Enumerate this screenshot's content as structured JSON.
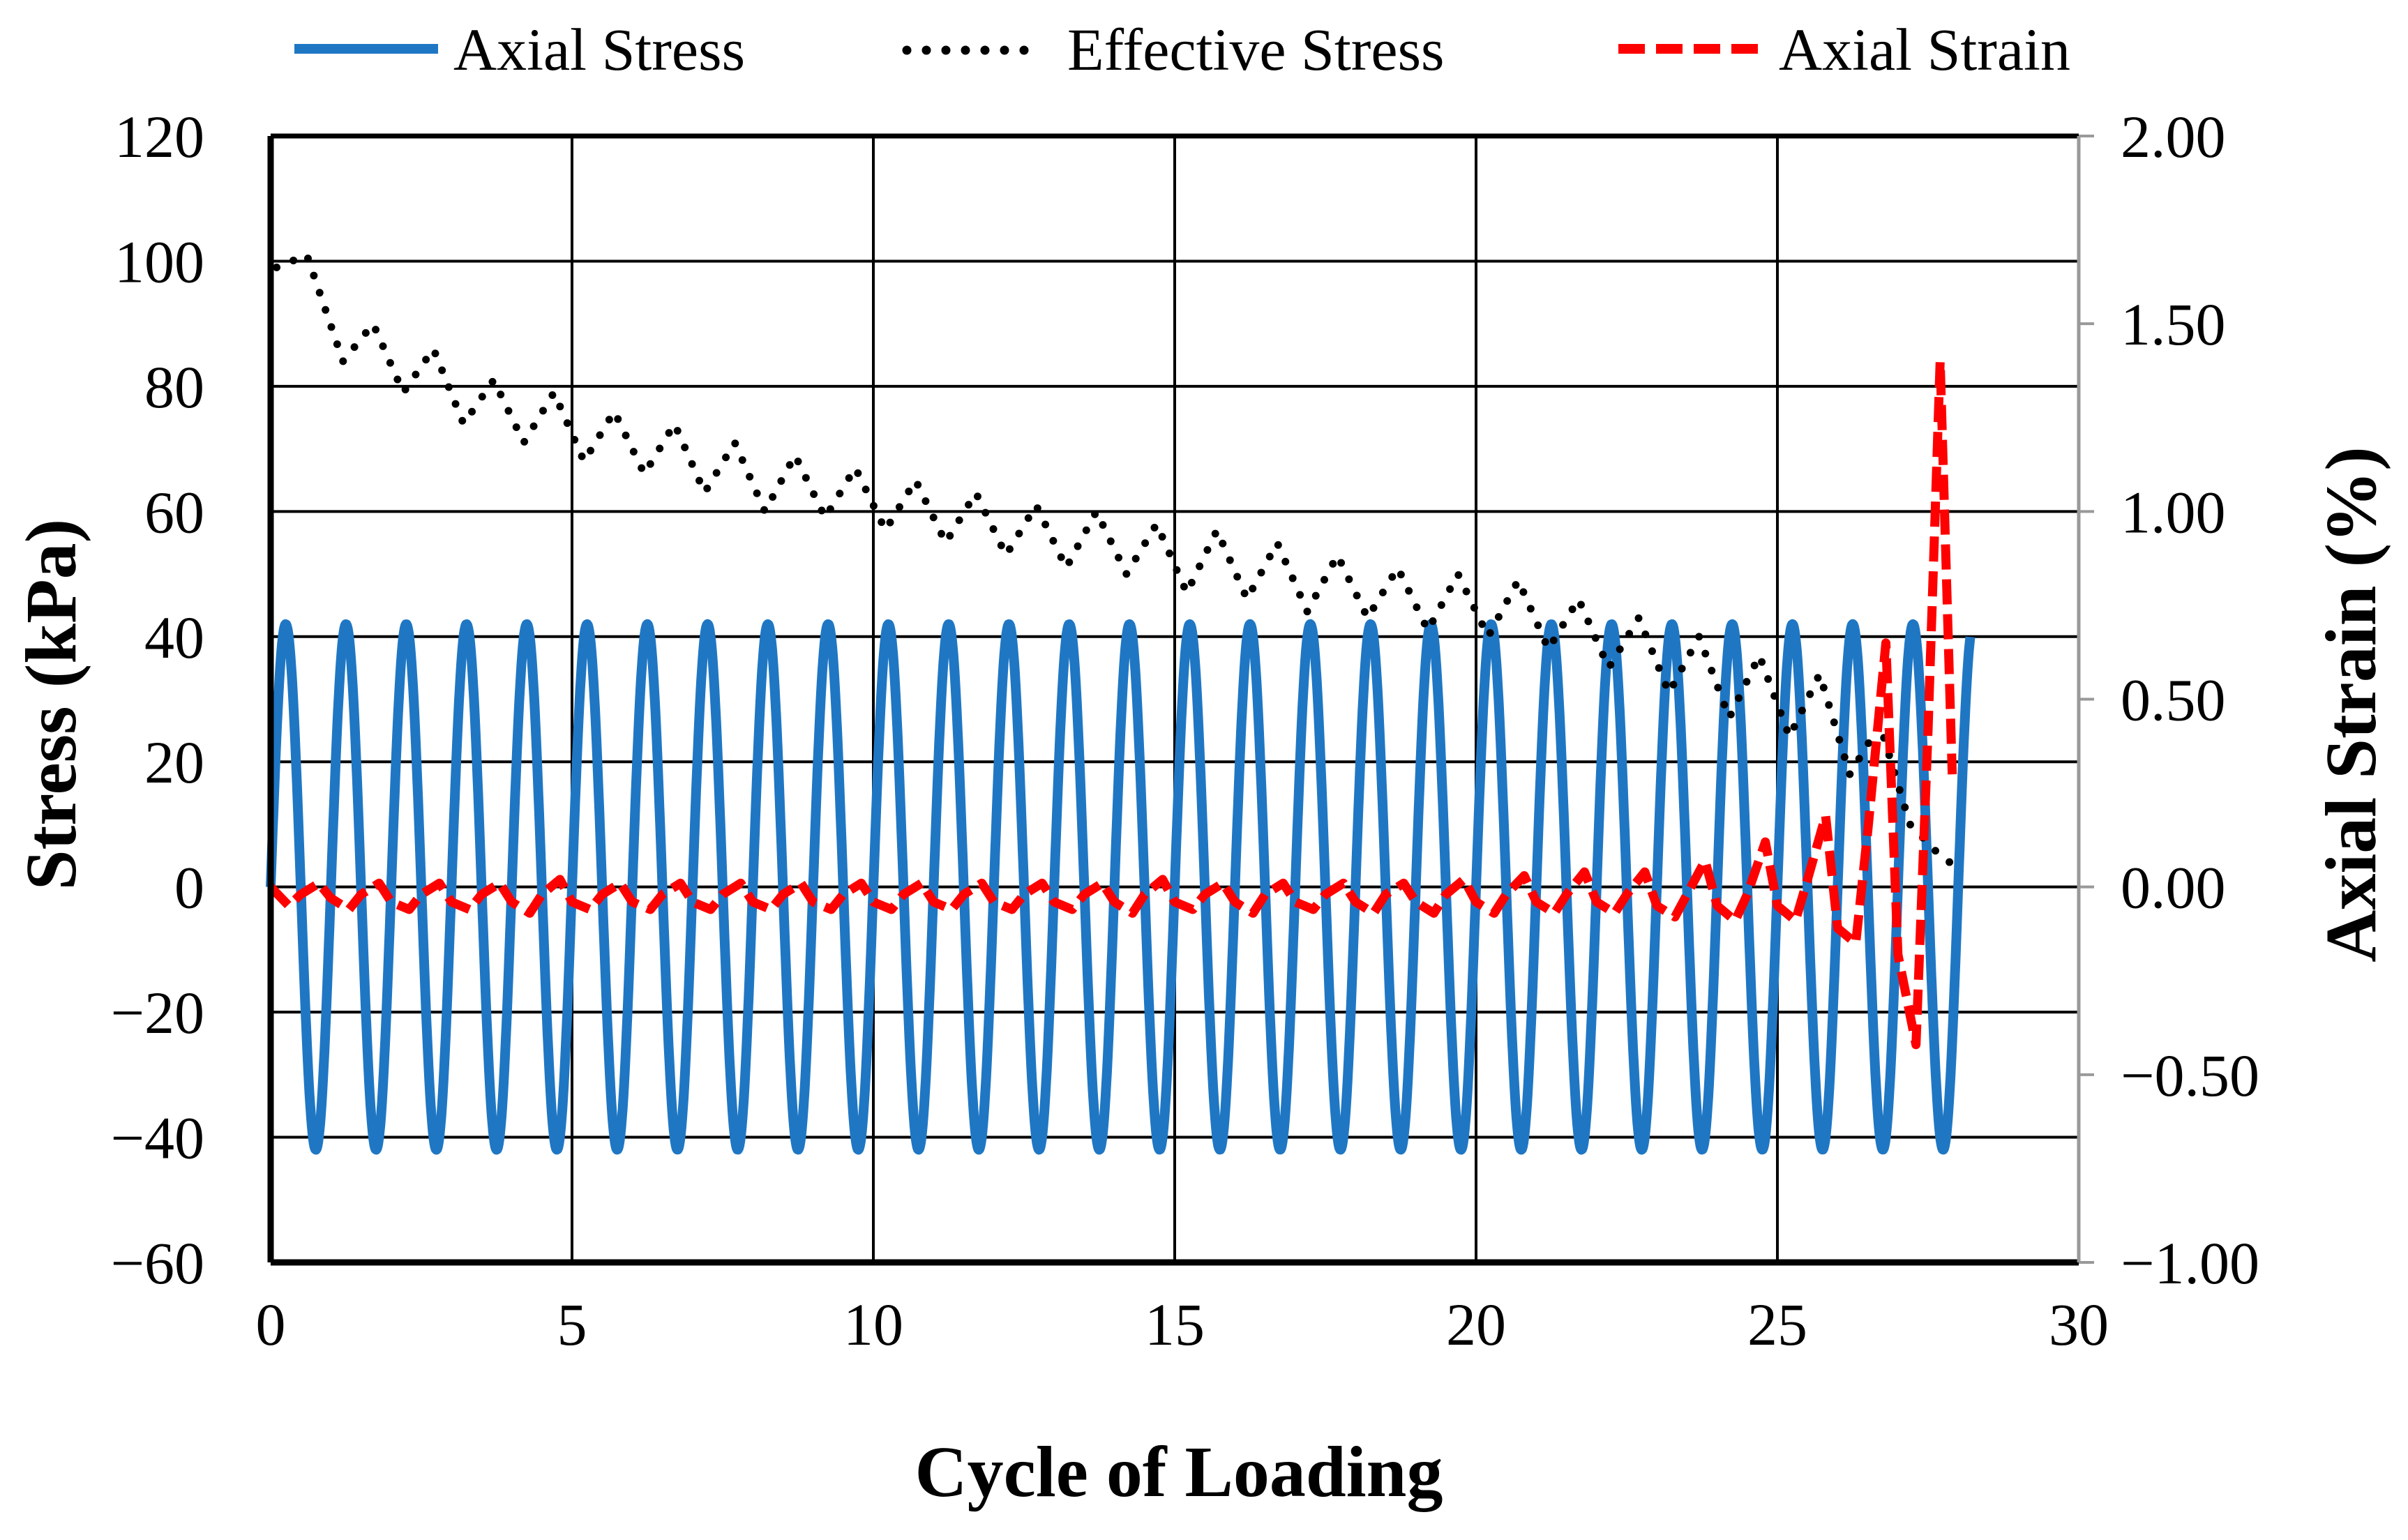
{
  "chart_data": {
    "type": "line",
    "title": "",
    "xlabel": "Cycle of Loading",
    "ylabel": "Stress (kPa)",
    "y2label": "Axial Strain (%)",
    "xlim": [
      0,
      30
    ],
    "ylim": [
      -60,
      120
    ],
    "y2lim": [
      -1.0,
      2.0
    ],
    "xticks": [
      "0",
      "5",
      "10",
      "15",
      "20",
      "25",
      "30"
    ],
    "yticks": [
      "120",
      "100",
      "80",
      "60",
      "40",
      "20",
      "0",
      "−20",
      "−40",
      "−60"
    ],
    "y2ticks": [
      "2.00",
      "1.50",
      "1.00",
      "0.50",
      "0.00",
      "−0.50",
      "−1.00"
    ],
    "grid": true,
    "legend_position": "top",
    "series": [
      {
        "name": "Axial Stress",
        "axis": "left",
        "style": "solid",
        "color": "#1f77c4",
        "description": "Sinusoidal cyclic loading, period 1 cycle, amplitude about 42 kPa, ends near cycle 28",
        "period": 1.0,
        "amplitude": 42,
        "x_end": 28.2
      },
      {
        "name": "Effective Stress",
        "axis": "left",
        "style": "dotted",
        "color": "#000000",
        "x": [
          0.1,
          0.6,
          1.2,
          1.7,
          2.2,
          2.7,
          3.2,
          3.7,
          4.2,
          4.7,
          5.2,
          5.7,
          6.2,
          6.7,
          7.2,
          7.7,
          8.2,
          8.7,
          9.2,
          9.7,
          10.2,
          10.7,
          11.2,
          11.7,
          12.2,
          12.7,
          13.2,
          13.7,
          14.2,
          14.7,
          15.2,
          15.7,
          16.2,
          16.7,
          17.2,
          17.7,
          18.2,
          18.7,
          19.2,
          19.7,
          20.2,
          20.7,
          21.2,
          21.7,
          22.2,
          22.7,
          23.2,
          23.7,
          24.2,
          24.7,
          25.2,
          25.7,
          26.2,
          26.7,
          27.2,
          27.7,
          28.0
        ],
        "values": [
          99,
          101,
          84,
          90,
          79,
          86,
          74,
          81,
          71,
          79,
          68,
          76,
          66,
          74,
          63,
          71,
          60,
          69,
          59,
          67,
          57,
          65,
          55,
          63,
          53,
          61,
          51,
          60,
          50,
          58,
          47,
          57,
          46,
          55,
          44,
          53,
          43,
          51,
          41,
          50,
          40,
          49,
          38,
          46,
          35,
          43,
          31,
          40,
          27,
          37,
          24,
          34,
          18,
          26,
          10,
          5,
          3
        ]
      },
      {
        "name": "Axial Strain",
        "axis": "right",
        "style": "dashed",
        "color": "#ff0000",
        "x": [
          0.0,
          0.3,
          0.5,
          0.8,
          1.0,
          1.3,
          1.5,
          1.8,
          2.0,
          2.3,
          2.5,
          2.8,
          3.0,
          3.3,
          3.5,
          3.8,
          4.0,
          4.3,
          4.5,
          4.8,
          5.0,
          5.3,
          5.5,
          5.8,
          6.0,
          6.3,
          6.5,
          6.8,
          7.0,
          7.3,
          7.5,
          7.8,
          8.0,
          8.3,
          8.5,
          8.8,
          9.0,
          9.3,
          9.5,
          9.8,
          10.0,
          10.3,
          10.5,
          10.8,
          11.0,
          11.3,
          11.5,
          11.8,
          12.0,
          12.3,
          12.5,
          12.8,
          13.0,
          13.3,
          13.5,
          13.8,
          14.0,
          14.3,
          14.5,
          14.8,
          15.0,
          15.3,
          15.5,
          15.8,
          16.0,
          16.3,
          16.5,
          16.8,
          17.0,
          17.3,
          17.5,
          17.8,
          18.0,
          18.3,
          18.5,
          18.8,
          19.0,
          19.3,
          19.5,
          19.8,
          20.0,
          20.3,
          20.5,
          20.8,
          21.0,
          21.3,
          21.5,
          21.8,
          22.0,
          22.3,
          22.5,
          22.8,
          23.0,
          23.3,
          23.5,
          23.8,
          24.0,
          24.3,
          24.5,
          24.8,
          25.0,
          25.3,
          25.5,
          25.8,
          26.0,
          26.3,
          26.5,
          26.8,
          27.0,
          27.3,
          27.5,
          27.7,
          27.9
        ],
        "values": [
          0.0,
          -0.05,
          -0.02,
          0.01,
          -0.03,
          -0.06,
          -0.02,
          0.01,
          -0.04,
          -0.06,
          -0.02,
          0.01,
          -0.04,
          -0.06,
          -0.02,
          0.01,
          -0.04,
          -0.07,
          -0.02,
          0.02,
          -0.04,
          -0.06,
          -0.02,
          0.01,
          -0.04,
          -0.06,
          -0.02,
          0.01,
          -0.04,
          -0.06,
          -0.02,
          0.01,
          -0.04,
          -0.06,
          -0.02,
          0.01,
          -0.04,
          -0.06,
          -0.02,
          0.01,
          -0.04,
          -0.06,
          -0.02,
          0.01,
          -0.04,
          -0.06,
          -0.02,
          0.01,
          -0.04,
          -0.06,
          -0.02,
          0.01,
          -0.04,
          -0.06,
          -0.02,
          0.01,
          -0.04,
          -0.07,
          -0.02,
          0.02,
          -0.04,
          -0.06,
          -0.02,
          0.01,
          -0.04,
          -0.07,
          -0.02,
          0.01,
          -0.04,
          -0.06,
          -0.02,
          0.01,
          -0.04,
          -0.07,
          -0.02,
          0.01,
          -0.04,
          -0.07,
          -0.02,
          0.02,
          -0.04,
          -0.07,
          -0.02,
          0.03,
          -0.04,
          -0.07,
          -0.02,
          0.04,
          -0.04,
          -0.07,
          -0.02,
          0.04,
          -0.05,
          -0.08,
          -0.02,
          0.07,
          -0.05,
          -0.09,
          -0.02,
          0.12,
          -0.05,
          -0.09,
          0.02,
          0.19,
          -0.11,
          -0.15,
          0.15,
          0.65,
          -0.18,
          -0.42,
          0.42,
          1.4,
          0.3
        ]
      }
    ]
  }
}
